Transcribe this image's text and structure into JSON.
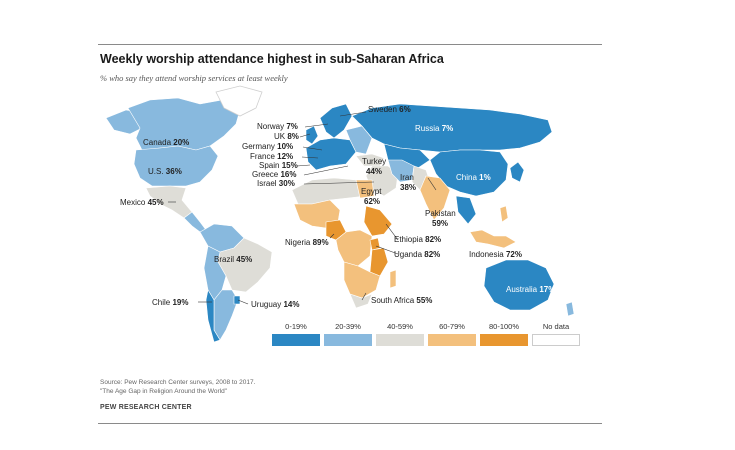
{
  "title": "Weekly worship attendance  highest  in sub-Saharan  Africa",
  "subtitle": "% who say they attend worship services at least weekly",
  "colors": {
    "c0": "#2b87c3",
    "c1": "#88b9de",
    "c2": "#deddd7",
    "c3": "#f3c07d",
    "c4": "#e8962f",
    "nodata": "#ffffff",
    "text": "#222222"
  },
  "legend": [
    {
      "label": "0-19%",
      "color": "#2b87c3"
    },
    {
      "label": "20-39%",
      "color": "#88b9de"
    },
    {
      "label": "40-59%",
      "color": "#deddd7"
    },
    {
      "label": "60-79%",
      "color": "#f3c07d"
    },
    {
      "label": "80-100%",
      "color": "#e8962f"
    },
    {
      "label": "No data",
      "color": "#ffffff"
    }
  ],
  "countries": [
    {
      "name": "Canada",
      "value": "20%"
    },
    {
      "name": "U.S.",
      "value": "36%"
    },
    {
      "name": "Mexico",
      "value": "45%"
    },
    {
      "name": "Brazil",
      "value": "45%"
    },
    {
      "name": "Chile",
      "value": "19%"
    },
    {
      "name": "Uruguay",
      "value": "14%"
    },
    {
      "name": "Sweden",
      "value": "6%"
    },
    {
      "name": "Norway",
      "value": "7%"
    },
    {
      "name": "UK",
      "value": "8%"
    },
    {
      "name": "Germany",
      "value": "10%"
    },
    {
      "name": "France",
      "value": "12%"
    },
    {
      "name": "Spain",
      "value": "15%"
    },
    {
      "name": "Greece",
      "value": "16%"
    },
    {
      "name": "Israel",
      "value": "30%"
    },
    {
      "name": "Russia",
      "value": "7%"
    },
    {
      "name": "Turkey",
      "value": "44%"
    },
    {
      "name": "Iran",
      "value": "38%"
    },
    {
      "name": "Egypt",
      "value": "62%"
    },
    {
      "name": "China",
      "value": "1%"
    },
    {
      "name": "Pakistan",
      "value": "59%"
    },
    {
      "name": "Nigeria",
      "value": "89%"
    },
    {
      "name": "Ethiopia",
      "value": "82%"
    },
    {
      "name": "Uganda",
      "value": "82%"
    },
    {
      "name": "Indonesia",
      "value": "72%"
    },
    {
      "name": "South Africa",
      "value": "55%"
    },
    {
      "name": "Australia",
      "value": "17%"
    }
  ],
  "source_line1": "Source: Pew Research Center surveys, 2008 to 2017.",
  "source_line2": "\"The Age Gap in Religion Around the World\"",
  "brand": "PEW RESEARCH CENTER"
}
